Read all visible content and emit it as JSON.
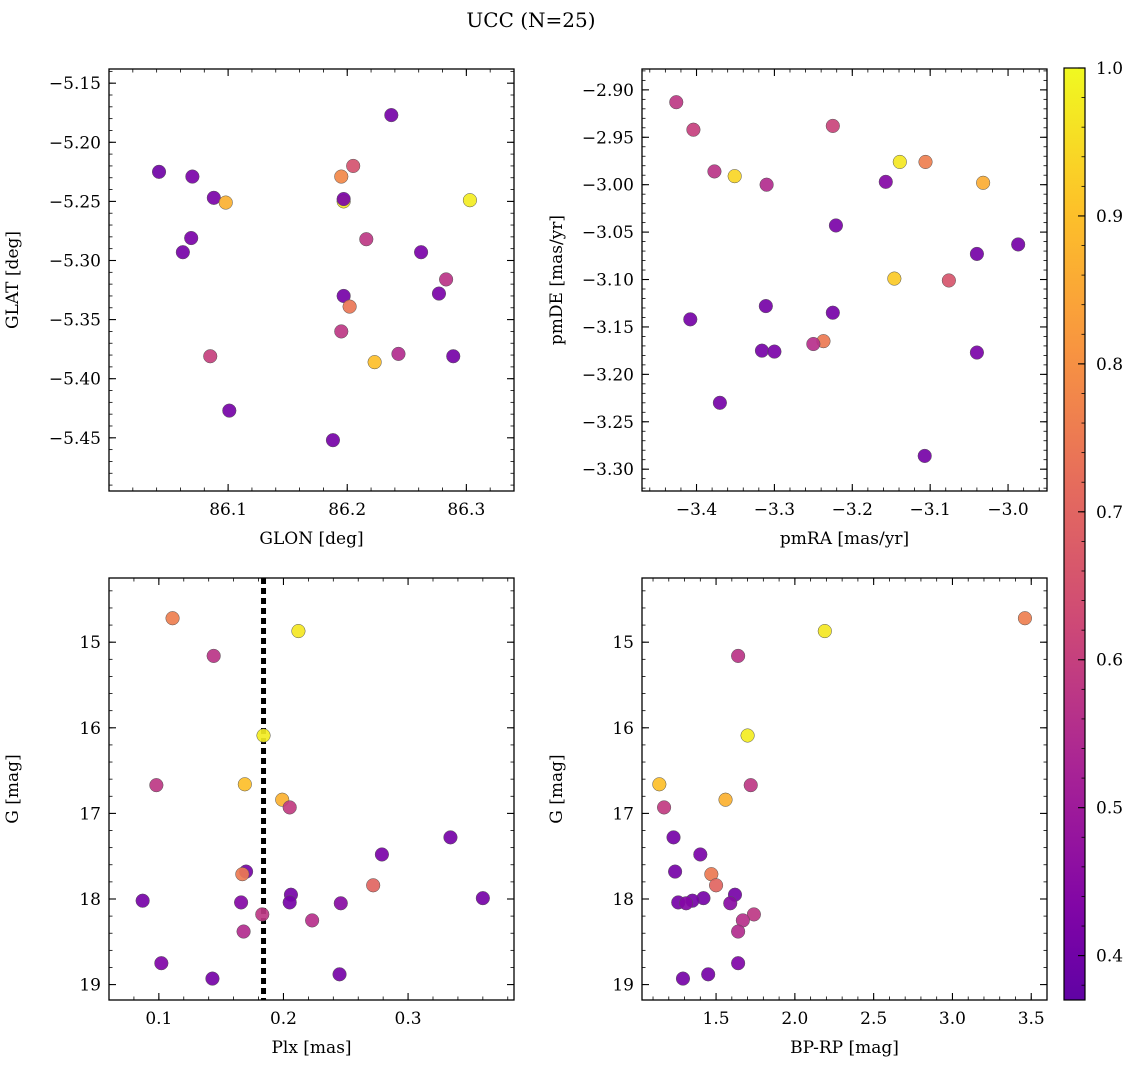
{
  "figure": {
    "title": "UCC (N=25)"
  },
  "colorbar": {
    "min": 0.37,
    "max": 1.0,
    "ticks": [
      0.4,
      0.5,
      0.6,
      0.7,
      0.8,
      0.9,
      1.0
    ],
    "tick_labels": [
      "0.4",
      "0.5",
      "0.6",
      "0.7",
      "0.8",
      "0.9",
      "1.0"
    ],
    "colormap": "plasma"
  },
  "chart_data": [
    {
      "id": "glon-glat",
      "type": "scatter",
      "xlabel": "GLON [deg]",
      "ylabel": "GLAT [deg]",
      "xlim": [
        86.0,
        86.34
      ],
      "ylim": [
        -5.495,
        -5.138
      ],
      "y_inverted": false,
      "xticks": [
        86.1,
        86.2,
        86.3
      ],
      "xtick_labels": [
        "86.1",
        "86.2",
        "86.3"
      ],
      "yticks": [
        -5.15,
        -5.2,
        -5.25,
        -5.3,
        -5.35,
        -5.4,
        -5.45
      ],
      "ytick_labels": [
        "−5.15",
        "−5.20",
        "−5.25",
        "−5.30",
        "−5.35",
        "−5.40",
        "−5.45"
      ],
      "points": [
        {
          "x": 86.042,
          "y": -5.225,
          "c": 0.4
        },
        {
          "x": 86.07,
          "y": -5.229,
          "c": 0.42
        },
        {
          "x": 86.088,
          "y": -5.247,
          "c": 0.42
        },
        {
          "x": 86.069,
          "y": -5.281,
          "c": 0.42
        },
        {
          "x": 86.062,
          "y": -5.293,
          "c": 0.41
        },
        {
          "x": 86.098,
          "y": -5.251,
          "c": 0.87
        },
        {
          "x": 86.101,
          "y": -5.427,
          "c": 0.41
        },
        {
          "x": 86.085,
          "y": -5.381,
          "c": 0.6
        },
        {
          "x": 86.237,
          "y": -5.177,
          "c": 0.41
        },
        {
          "x": 86.205,
          "y": -5.22,
          "c": 0.65
        },
        {
          "x": 86.195,
          "y": -5.229,
          "c": 0.78
        },
        {
          "x": 86.197,
          "y": -5.25,
          "c": 0.97
        },
        {
          "x": 86.197,
          "y": -5.248,
          "c": 0.42
        },
        {
          "x": 86.303,
          "y": -5.249,
          "c": 0.98
        },
        {
          "x": 86.216,
          "y": -5.282,
          "c": 0.58
        },
        {
          "x": 86.262,
          "y": -5.293,
          "c": 0.42
        },
        {
          "x": 86.283,
          "y": -5.316,
          "c": 0.57
        },
        {
          "x": 86.277,
          "y": -5.328,
          "c": 0.42
        },
        {
          "x": 86.197,
          "y": -5.33,
          "c": 0.41
        },
        {
          "x": 86.202,
          "y": -5.339,
          "c": 0.74
        },
        {
          "x": 86.195,
          "y": -5.36,
          "c": 0.58
        },
        {
          "x": 86.243,
          "y": -5.379,
          "c": 0.55
        },
        {
          "x": 86.289,
          "y": -5.381,
          "c": 0.41
        },
        {
          "x": 86.223,
          "y": -5.386,
          "c": 0.9
        },
        {
          "x": 86.188,
          "y": -5.452,
          "c": 0.41
        }
      ]
    },
    {
      "id": "pmra-pmde",
      "type": "scatter",
      "xlabel": "pmRA [mas/yr]",
      "ylabel": "pmDE [mas/yr]",
      "xlim": [
        -3.47,
        -2.95
      ],
      "ylim": [
        -3.323,
        -2.878
      ],
      "y_inverted": false,
      "xticks": [
        -3.4,
        -3.3,
        -3.2,
        -3.1,
        -3.0
      ],
      "xtick_labels": [
        "−3.4",
        "−3.3",
        "−3.2",
        "−3.1",
        "−3.0"
      ],
      "yticks": [
        -2.9,
        -2.95,
        -3.0,
        -3.05,
        -3.1,
        -3.15,
        -3.2,
        -3.25,
        -3.3
      ],
      "ytick_labels": [
        "−2.90",
        "−2.95",
        "−3.00",
        "−3.05",
        "−3.10",
        "−3.15",
        "−3.20",
        "−3.25",
        "−3.30"
      ],
      "points": [
        {
          "x": -3.426,
          "y": -2.913,
          "c": 0.58
        },
        {
          "x": -3.404,
          "y": -2.942,
          "c": 0.6
        },
        {
          "x": -3.377,
          "y": -2.986,
          "c": 0.57
        },
        {
          "x": -3.351,
          "y": -2.991,
          "c": 0.94
        },
        {
          "x": -3.31,
          "y": -3.0,
          "c": 0.55
        },
        {
          "x": -3.225,
          "y": -2.938,
          "c": 0.61
        },
        {
          "x": -3.139,
          "y": -2.976,
          "c": 0.97
        },
        {
          "x": -3.106,
          "y": -2.976,
          "c": 0.76
        },
        {
          "x": -3.157,
          "y": -2.997,
          "c": 0.44
        },
        {
          "x": -3.032,
          "y": -2.998,
          "c": 0.86
        },
        {
          "x": -3.221,
          "y": -3.043,
          "c": 0.42
        },
        {
          "x": -2.987,
          "y": -3.063,
          "c": 0.41
        },
        {
          "x": -3.04,
          "y": -3.073,
          "c": 0.41
        },
        {
          "x": -3.146,
          "y": -3.099,
          "c": 0.92
        },
        {
          "x": -3.076,
          "y": -3.101,
          "c": 0.66
        },
        {
          "x": -3.311,
          "y": -3.128,
          "c": 0.41
        },
        {
          "x": -3.408,
          "y": -3.142,
          "c": 0.41
        },
        {
          "x": -3.225,
          "y": -3.135,
          "c": 0.41
        },
        {
          "x": -3.237,
          "y": -3.165,
          "c": 0.75
        },
        {
          "x": -3.25,
          "y": -3.168,
          "c": 0.56
        },
        {
          "x": -3.316,
          "y": -3.175,
          "c": 0.41
        },
        {
          "x": -3.3,
          "y": -3.176,
          "c": 0.42
        },
        {
          "x": -3.04,
          "y": -3.177,
          "c": 0.42
        },
        {
          "x": -3.37,
          "y": -3.23,
          "c": 0.41
        },
        {
          "x": -3.107,
          "y": -3.286,
          "c": 0.41
        }
      ]
    },
    {
      "id": "plx-g",
      "type": "scatter",
      "xlabel": "Plx [mas]",
      "ylabel": "G [mag]",
      "xlim": [
        0.06,
        0.385
      ],
      "ylim": [
        14.25,
        19.18
      ],
      "y_inverted": true,
      "xticks": [
        0.1,
        0.2,
        0.3
      ],
      "xtick_labels": [
        "0.1",
        "0.2",
        "0.3"
      ],
      "yticks": [
        15,
        16,
        17,
        18,
        19
      ],
      "ytick_labels": [
        "15",
        "16",
        "17",
        "18",
        "19"
      ],
      "vline": 0.184,
      "points": [
        {
          "x": 0.111,
          "y": 14.72,
          "c": 0.76
        },
        {
          "x": 0.212,
          "y": 14.87,
          "c": 0.97
        },
        {
          "x": 0.144,
          "y": 15.16,
          "c": 0.57
        },
        {
          "x": 0.184,
          "y": 16.09,
          "c": 0.98
        },
        {
          "x": 0.098,
          "y": 16.67,
          "c": 0.58
        },
        {
          "x": 0.169,
          "y": 16.66,
          "c": 0.9
        },
        {
          "x": 0.199,
          "y": 16.84,
          "c": 0.87
        },
        {
          "x": 0.205,
          "y": 16.93,
          "c": 0.59
        },
        {
          "x": 0.334,
          "y": 17.28,
          "c": 0.41
        },
        {
          "x": 0.279,
          "y": 17.48,
          "c": 0.42
        },
        {
          "x": 0.17,
          "y": 17.68,
          "c": 0.41
        },
        {
          "x": 0.167,
          "y": 17.71,
          "c": 0.75
        },
        {
          "x": 0.272,
          "y": 17.84,
          "c": 0.7
        },
        {
          "x": 0.206,
          "y": 17.95,
          "c": 0.41
        },
        {
          "x": 0.087,
          "y": 18.02,
          "c": 0.41
        },
        {
          "x": 0.36,
          "y": 17.99,
          "c": 0.41
        },
        {
          "x": 0.166,
          "y": 18.04,
          "c": 0.44
        },
        {
          "x": 0.205,
          "y": 18.04,
          "c": 0.41
        },
        {
          "x": 0.246,
          "y": 18.05,
          "c": 0.45
        },
        {
          "x": 0.183,
          "y": 18.18,
          "c": 0.58
        },
        {
          "x": 0.223,
          "y": 18.25,
          "c": 0.56
        },
        {
          "x": 0.168,
          "y": 18.38,
          "c": 0.55
        },
        {
          "x": 0.102,
          "y": 18.75,
          "c": 0.43
        },
        {
          "x": 0.245,
          "y": 18.88,
          "c": 0.41
        },
        {
          "x": 0.143,
          "y": 18.93,
          "c": 0.41
        }
      ]
    },
    {
      "id": "bprp-g",
      "type": "scatter",
      "xlabel": "BP-RP [mag]",
      "ylabel": "G [mag]",
      "xlim": [
        1.03,
        3.6
      ],
      "ylim": [
        14.25,
        19.18
      ],
      "y_inverted": true,
      "xticks": [
        1.5,
        2.0,
        2.5,
        3.0,
        3.5
      ],
      "xtick_labels": [
        "1.5",
        "2.0",
        "2.5",
        "3.0",
        "3.5"
      ],
      "yticks": [
        15,
        16,
        17,
        18,
        19
      ],
      "ytick_labels": [
        "15",
        "16",
        "17",
        "18",
        "19"
      ],
      "points": [
        {
          "x": 3.46,
          "y": 14.72,
          "c": 0.76
        },
        {
          "x": 2.19,
          "y": 14.87,
          "c": 0.97
        },
        {
          "x": 1.64,
          "y": 15.16,
          "c": 0.57
        },
        {
          "x": 1.7,
          "y": 16.09,
          "c": 0.98
        },
        {
          "x": 1.14,
          "y": 16.66,
          "c": 0.9
        },
        {
          "x": 1.72,
          "y": 16.67,
          "c": 0.58
        },
        {
          "x": 1.56,
          "y": 16.84,
          "c": 0.87
        },
        {
          "x": 1.17,
          "y": 16.93,
          "c": 0.59
        },
        {
          "x": 1.23,
          "y": 17.28,
          "c": 0.41
        },
        {
          "x": 1.4,
          "y": 17.48,
          "c": 0.42
        },
        {
          "x": 1.24,
          "y": 17.68,
          "c": 0.41
        },
        {
          "x": 1.47,
          "y": 17.71,
          "c": 0.75
        },
        {
          "x": 1.5,
          "y": 17.84,
          "c": 0.7
        },
        {
          "x": 1.62,
          "y": 17.95,
          "c": 0.41
        },
        {
          "x": 1.42,
          "y": 17.99,
          "c": 0.41
        },
        {
          "x": 1.35,
          "y": 18.02,
          "c": 0.41
        },
        {
          "x": 1.26,
          "y": 18.04,
          "c": 0.41
        },
        {
          "x": 1.59,
          "y": 18.05,
          "c": 0.45
        },
        {
          "x": 1.31,
          "y": 18.05,
          "c": 0.44
        },
        {
          "x": 1.74,
          "y": 18.18,
          "c": 0.58
        },
        {
          "x": 1.67,
          "y": 18.25,
          "c": 0.56
        },
        {
          "x": 1.64,
          "y": 18.38,
          "c": 0.55
        },
        {
          "x": 1.64,
          "y": 18.75,
          "c": 0.43
        },
        {
          "x": 1.45,
          "y": 18.88,
          "c": 0.41
        },
        {
          "x": 1.29,
          "y": 18.93,
          "c": 0.41
        }
      ]
    }
  ]
}
